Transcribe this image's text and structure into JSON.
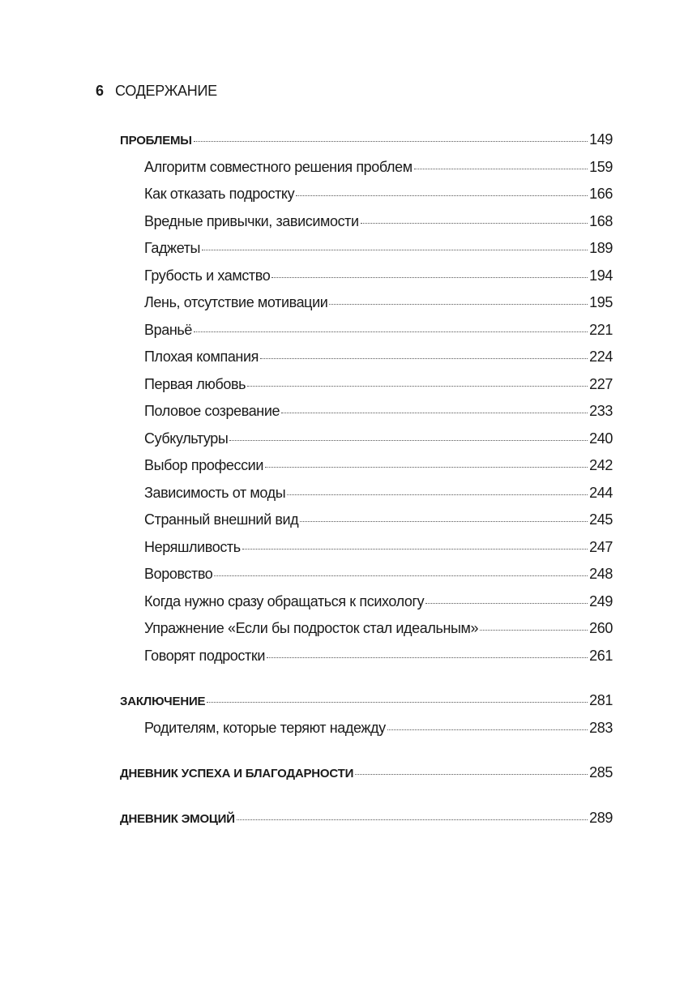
{
  "header": {
    "page_number": "6",
    "title": "СОДЕРЖАНИЕ"
  },
  "sections": [
    {
      "title": "ПРОБЛЕМЫ",
      "page": "149",
      "items": [
        {
          "title": "Алгоритм совместного решения проблем",
          "page": "159"
        },
        {
          "title": "Как отказать подростку",
          "page": "166"
        },
        {
          "title": "Вредные привычки, зависимости",
          "page": "168"
        },
        {
          "title": "Гаджеты",
          "page": "189"
        },
        {
          "title": "Грубость и хамство",
          "page": "194"
        },
        {
          "title": "Лень, отсутствие мотивации",
          "page": "195"
        },
        {
          "title": "Враньё",
          "page": "221"
        },
        {
          "title": "Плохая компания",
          "page": "224"
        },
        {
          "title": "Первая любовь",
          "page": "227"
        },
        {
          "title": "Половое созревание",
          "page": "233"
        },
        {
          "title": "Субкультуры",
          "page": "240"
        },
        {
          "title": "Выбор профессии",
          "page": "242"
        },
        {
          "title": "Зависимость от моды",
          "page": "244"
        },
        {
          "title": "Странный внешний вид",
          "page": "245"
        },
        {
          "title": "Неряшливость",
          "page": "247"
        },
        {
          "title": "Воровство",
          "page": "248"
        },
        {
          "title": "Когда нужно сразу обращаться к психологу",
          "page": "249"
        },
        {
          "title": "Упражнение «Если бы подросток стал идеальным»",
          "page": "260"
        },
        {
          "title": "Говорят подростки",
          "page": "261"
        }
      ]
    },
    {
      "title": "ЗАКЛЮЧЕНИЕ",
      "page": "281",
      "items": [
        {
          "title": "Родителям, которые теряют надежду",
          "page": "283"
        }
      ]
    },
    {
      "title": "ДНЕВНИК УСПЕХА И БЛАГОДАРНОСТИ",
      "page": "285",
      "items": []
    },
    {
      "title": "ДНЕВНИК ЭМОЦИЙ",
      "page": "289",
      "items": []
    }
  ]
}
